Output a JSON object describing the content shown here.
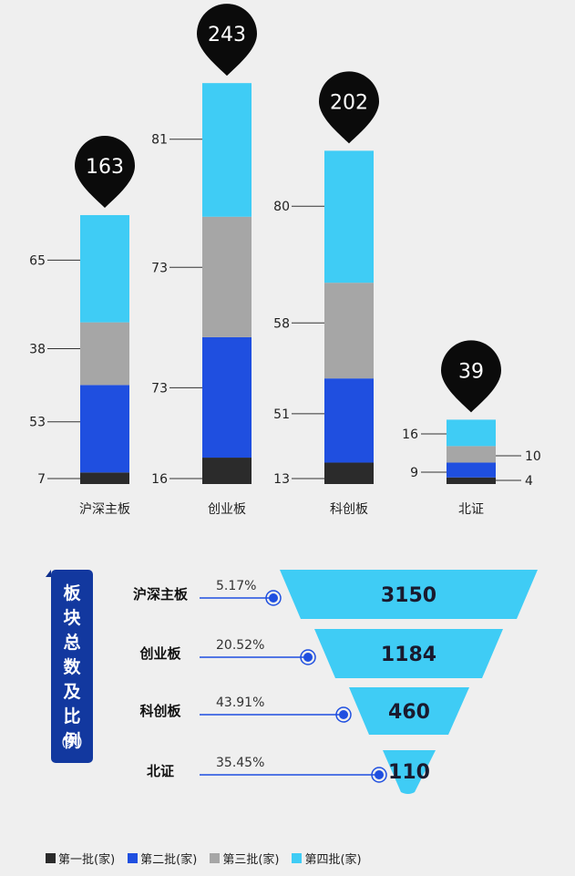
{
  "chart_data": [
    {
      "type": "bar",
      "stacked": true,
      "categories": [
        "沪深主板",
        "创业板",
        "科创板",
        "北证"
      ],
      "totals": [
        "163",
        "243",
        "202",
        "39"
      ],
      "series": [
        {
          "name": "第一批(家)",
          "color": "#2b2b2b",
          "values": [
            7,
            16,
            13,
            4
          ]
        },
        {
          "name": "第二批(家)",
          "color": "#1f4fe0",
          "values": [
            53,
            73,
            51,
            9
          ]
        },
        {
          "name": "第三批(家)",
          "color": "#a6a6a6",
          "values": [
            38,
            73,
            58,
            10
          ]
        },
        {
          "name": "第四批(家)",
          "color": "#3fccf5",
          "values": [
            65,
            81,
            80,
            16
          ]
        }
      ]
    },
    {
      "type": "funnel",
      "title": "板块总数及比例",
      "unit": "(家)",
      "categories": [
        "沪深主板",
        "创业板",
        "科创板",
        "北证"
      ],
      "values": [
        3150,
        1184,
        460,
        110
      ],
      "value_labels": [
        "3150",
        "1184",
        "460",
        "110"
      ],
      "percentages": [
        "5.17%",
        "20.52%",
        "43.91%",
        "35.45%"
      ]
    }
  ],
  "legend": [
    {
      "label": "第一批(家)",
      "color": "#2b2b2b"
    },
    {
      "label": "第二批(家)",
      "color": "#1f4fe0"
    },
    {
      "label": "第三批(家)",
      "color": "#a6a6a6"
    },
    {
      "label": "第四批(家)",
      "color": "#3fccf5"
    }
  ]
}
